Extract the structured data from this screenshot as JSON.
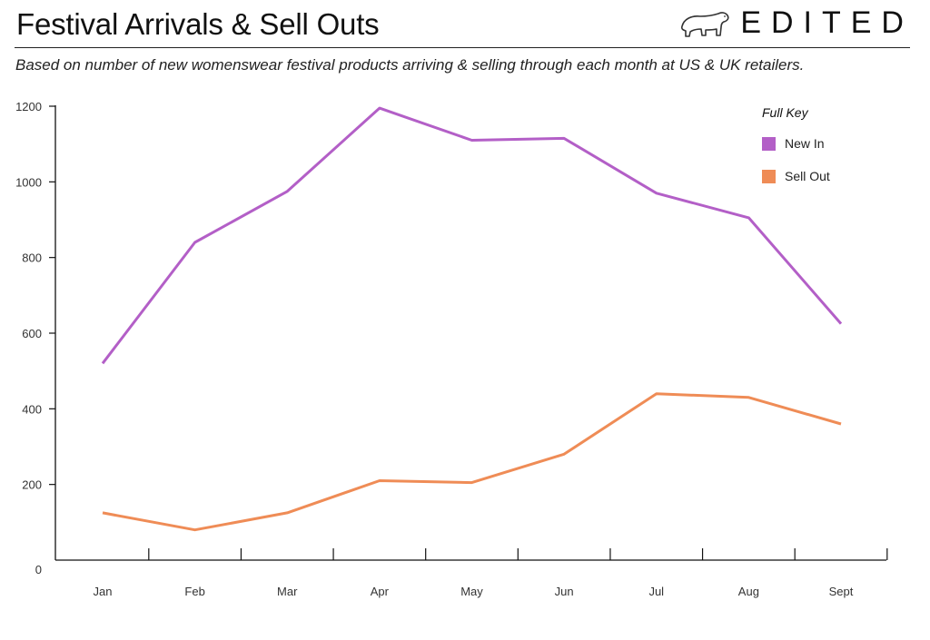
{
  "header": {
    "title": "Festival Arrivals & Sell Outs",
    "subtitle": "Based on number of new womenswear festival products arriving & selling through each month at US & UK retailers.",
    "brand": "EDITED",
    "brand_icon": "polar-bear-icon"
  },
  "chart_data": {
    "type": "line",
    "title": "Festival Arrivals & Sell Outs",
    "subtitle": "Based on number of new womenswear festival products arriving & selling through each month at US & UK retailers.",
    "categories": [
      "Jan",
      "Feb",
      "Mar",
      "Apr",
      "May",
      "Jun",
      "Jul",
      "Aug",
      "Sept"
    ],
    "yticks": [
      "0",
      "200",
      "400",
      "600",
      "800",
      "1000",
      "1200"
    ],
    "ylim": [
      0,
      1200
    ],
    "legend": {
      "title": "Full Key",
      "placement": "top-right"
    },
    "grid": false,
    "series": [
      {
        "name": "New In",
        "color": "#b35fc7",
        "values": [
          520,
          840,
          975,
          1195,
          1110,
          1115,
          970,
          905,
          625
        ]
      },
      {
        "name": "Sell Out",
        "color": "#ef8c56",
        "values": [
          125,
          80,
          125,
          210,
          205,
          280,
          440,
          430,
          360
        ]
      }
    ]
  }
}
